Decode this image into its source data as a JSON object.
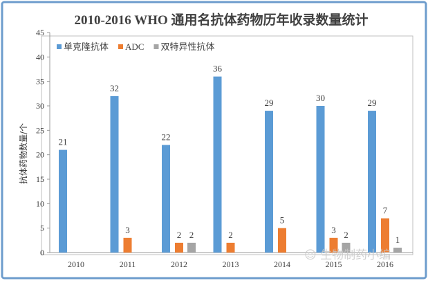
{
  "chart_data": {
    "type": "bar",
    "title": "2010-2016 WHO 通用名抗体药物历年收录数量统计",
    "xlabel": "",
    "ylabel": "抗体药物数量/个",
    "ylim": [
      0,
      45
    ],
    "yticks": [
      0,
      5,
      10,
      15,
      20,
      25,
      30,
      35,
      40,
      45
    ],
    "categories": [
      "2010",
      "2011",
      "2012",
      "2013",
      "2014",
      "2015",
      "2016"
    ],
    "series": [
      {
        "name": "单克隆抗体",
        "color": "#5b9bd5",
        "values": [
          21,
          32,
          22,
          36,
          29,
          30,
          29
        ]
      },
      {
        "name": "ADC",
        "color": "#ed7d31",
        "values": [
          0,
          3,
          2,
          2,
          5,
          3,
          7
        ]
      },
      {
        "name": "双特异性抗体",
        "color": "#a5a5a5",
        "values": [
          0,
          0,
          2,
          0,
          0,
          2,
          1
        ]
      }
    ],
    "legend": "top-left",
    "grid": false
  },
  "watermark": "生物制药小编",
  "frame_color": "#6d9ccc"
}
